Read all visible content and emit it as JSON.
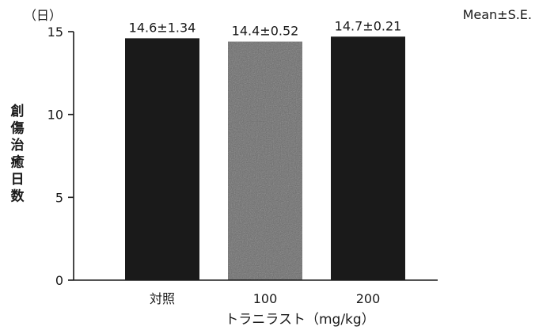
{
  "chart_data": {
    "type": "bar",
    "categories": [
      "対照",
      "100",
      "200"
    ],
    "values": [
      14.6,
      14.4,
      14.7
    ],
    "data_labels": [
      "14.6±1.34",
      "14.4±0.52",
      "14.7±0.21"
    ],
    "bar_colors": [
      "#1a1a1a",
      "#6b6b6b",
      "#1a1a1a"
    ],
    "ylabel": "創傷治癒日数",
    "y_unit": "（日）",
    "xlabel": "トラニラスト（mg/kg）",
    "legend_note": "Mean±S.E.",
    "ylim": [
      0,
      15
    ],
    "yticks": [
      0,
      5,
      10,
      15
    ],
    "ytick_labels": [
      "0",
      "5",
      "10",
      "15"
    ],
    "grid": false
  }
}
